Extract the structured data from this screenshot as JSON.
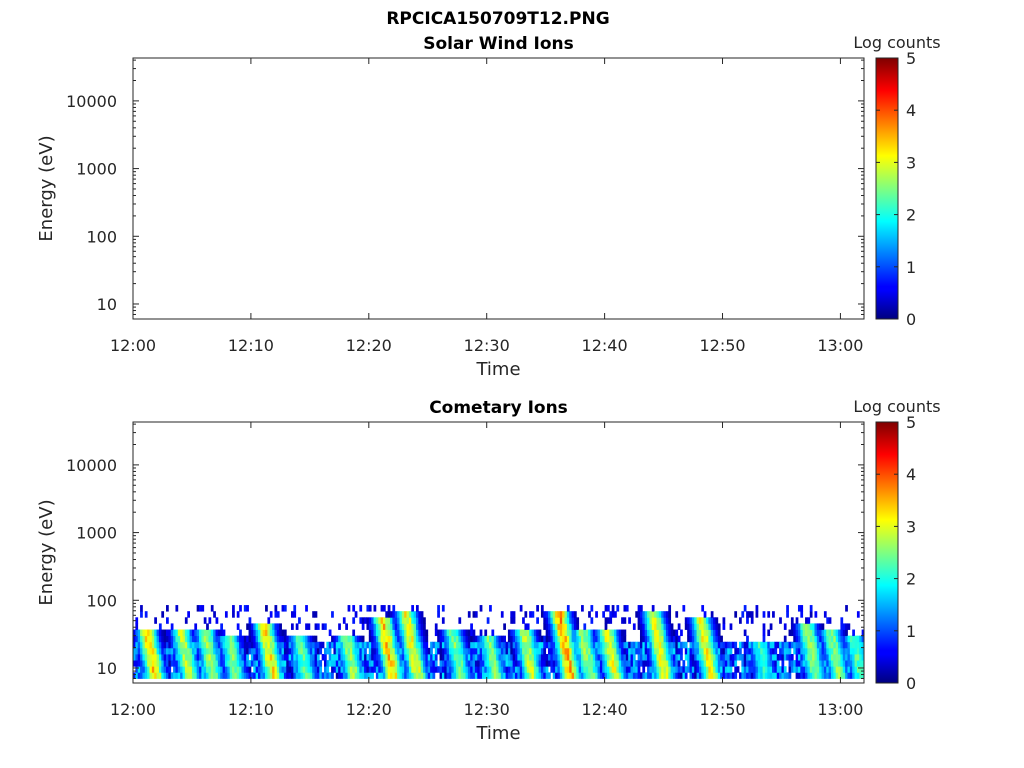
{
  "figure_title": "RPCICA150709T12.PNG",
  "chart_data": [
    {
      "type": "heatmap",
      "title": "Solar Wind Ions",
      "xlabel": "Time",
      "ylabel": "Energy (eV)",
      "x_ticks": [
        "12:00",
        "12:10",
        "12:20",
        "12:30",
        "12:40",
        "12:50",
        "13:00"
      ],
      "x_range": [
        "12:00",
        "13:02"
      ],
      "y_scale": "log",
      "y_ticks": [
        10,
        100,
        1000,
        10000
      ],
      "y_tick_labels": [
        "10",
        "100",
        "1000",
        "10000"
      ],
      "y_range": [
        6,
        43000
      ],
      "colorbar": {
        "label": "Log counts",
        "range": [
          0,
          5
        ],
        "ticks": [
          "0",
          "1",
          "2",
          "3",
          "4",
          "5"
        ],
        "colormap": "jet"
      },
      "bursts": []
    },
    {
      "type": "heatmap",
      "title": "Cometary Ions",
      "xlabel": "Time",
      "ylabel": "Energy (eV)",
      "x_ticks": [
        "12:00",
        "12:10",
        "12:20",
        "12:30",
        "12:40",
        "12:50",
        "13:00"
      ],
      "x_range": [
        "12:00",
        "13:02"
      ],
      "y_scale": "log",
      "y_ticks": [
        10,
        100,
        1000,
        10000
      ],
      "y_tick_labels": [
        "10",
        "100",
        "1000",
        "10000"
      ],
      "y_range": [
        6,
        43000
      ],
      "colorbar": {
        "label": "Log counts",
        "range": [
          0,
          5
        ],
        "ticks": [
          "0",
          "1",
          "2",
          "3",
          "4",
          "5"
        ],
        "colormap": "jet"
      },
      "background_band_eV": [
        7,
        28
      ],
      "sparse_band_eV": [
        28,
        85
      ],
      "bursts": [
        {
          "time": "12:01",
          "peak_log_counts": 3.8,
          "top_eV": 40
        },
        {
          "time": "12:04",
          "peak_log_counts": 3.2,
          "top_eV": 35
        },
        {
          "time": "12:06",
          "peak_log_counts": 3.0,
          "top_eV": 35
        },
        {
          "time": "12:08",
          "peak_log_counts": 2.8,
          "top_eV": 30
        },
        {
          "time": "12:11",
          "peak_log_counts": 3.6,
          "top_eV": 45
        },
        {
          "time": "12:14",
          "peak_log_counts": 2.6,
          "top_eV": 28
        },
        {
          "time": "12:18",
          "peak_log_counts": 3.0,
          "top_eV": 30
        },
        {
          "time": "12:21",
          "peak_log_counts": 3.8,
          "top_eV": 60
        },
        {
          "time": "12:23",
          "peak_log_counts": 3.5,
          "top_eV": 70
        },
        {
          "time": "12:27",
          "peak_log_counts": 2.8,
          "top_eV": 35
        },
        {
          "time": "12:30",
          "peak_log_counts": 2.8,
          "top_eV": 30
        },
        {
          "time": "12:33",
          "peak_log_counts": 3.2,
          "top_eV": 40
        },
        {
          "time": "12:36",
          "peak_log_counts": 4.0,
          "top_eV": 70
        },
        {
          "time": "12:38",
          "peak_log_counts": 3.0,
          "top_eV": 35
        },
        {
          "time": "12:40",
          "peak_log_counts": 3.4,
          "top_eV": 40
        },
        {
          "time": "12:44",
          "peak_log_counts": 3.5,
          "top_eV": 65
        },
        {
          "time": "12:48",
          "peak_log_counts": 3.5,
          "top_eV": 60
        },
        {
          "time": "12:53",
          "peak_log_counts": 2.4,
          "top_eV": 25
        },
        {
          "time": "12:57",
          "peak_log_counts": 3.0,
          "top_eV": 45
        },
        {
          "time": "12:59",
          "peak_log_counts": 2.9,
          "top_eV": 40
        },
        {
          "time": "13:01",
          "peak_log_counts": 2.6,
          "top_eV": 30
        }
      ]
    }
  ]
}
